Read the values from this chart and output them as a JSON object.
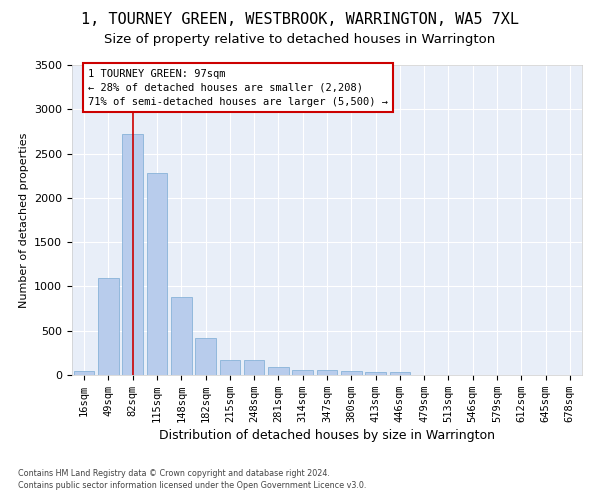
{
  "title": "1, TOURNEY GREEN, WESTBROOK, WARRINGTON, WA5 7XL",
  "subtitle": "Size of property relative to detached houses in Warrington",
  "xlabel": "Distribution of detached houses by size in Warrington",
  "ylabel": "Number of detached properties",
  "categories": [
    "16sqm",
    "49sqm",
    "82sqm",
    "115sqm",
    "148sqm",
    "182sqm",
    "215sqm",
    "248sqm",
    "281sqm",
    "314sqm",
    "347sqm",
    "380sqm",
    "413sqm",
    "446sqm",
    "479sqm",
    "513sqm",
    "546sqm",
    "579sqm",
    "612sqm",
    "645sqm",
    "678sqm"
  ],
  "values": [
    50,
    1100,
    2720,
    2280,
    880,
    420,
    175,
    170,
    95,
    60,
    55,
    50,
    30,
    30,
    5,
    5,
    0,
    0,
    0,
    0,
    0
  ],
  "bar_color": "#b8ccec",
  "bar_edgecolor": "#7aaad4",
  "vline_x_index": 2,
  "vline_color": "#cc0000",
  "annotation_text": "1 TOURNEY GREEN: 97sqm\n← 28% of detached houses are smaller (2,208)\n71% of semi-detached houses are larger (5,500) →",
  "annotation_box_color": "#cc0000",
  "background_color": "#e8eef8",
  "grid_color": "#ffffff",
  "ylim": [
    0,
    3500
  ],
  "yticks": [
    0,
    500,
    1000,
    1500,
    2000,
    2500,
    3000,
    3500
  ],
  "footer_line1": "Contains HM Land Registry data © Crown copyright and database right 2024.",
  "footer_line2": "Contains public sector information licensed under the Open Government Licence v3.0.",
  "title_fontsize": 11,
  "subtitle_fontsize": 9.5,
  "xlabel_fontsize": 9,
  "ylabel_fontsize": 8,
  "tick_fontsize": 7.5,
  "annot_fontsize": 7.5
}
